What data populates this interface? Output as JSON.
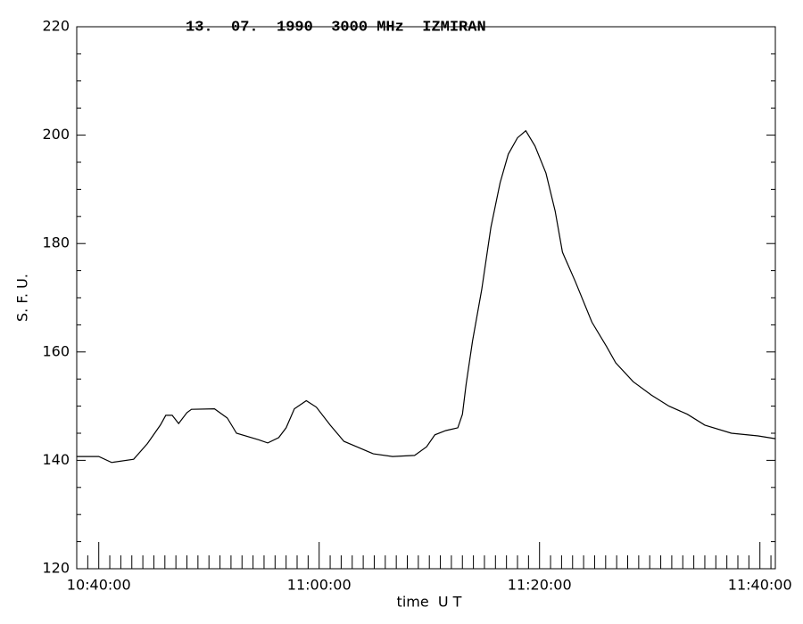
{
  "chart_data": {
    "type": "line",
    "title": "13.  07.  1990  3000 MHz  IZMIRAN",
    "xlabel": "time  U T",
    "ylabel": "S. F. U.",
    "color": "#000000",
    "x": [
      "10:38:00",
      "10:40:00",
      "10:41:10",
      "10:43:10",
      "10:44:25",
      "10:45:35",
      "10:46:05",
      "10:46:40",
      "10:47:15",
      "10:48:00",
      "10:48:25",
      "10:50:30",
      "10:51:40",
      "10:52:30",
      "10:54:30",
      "10:55:20",
      "10:56:20",
      "10:57:00",
      "10:57:45",
      "10:58:50",
      "10:59:45",
      "11:01:00",
      "11:02:15",
      "11:03:25",
      "11:04:55",
      "11:06:40",
      "11:08:40",
      "11:09:45",
      "11:10:30",
      "11:11:30",
      "11:12:35",
      "11:13:00",
      "11:13:20",
      "11:13:55",
      "11:14:45",
      "11:15:35",
      "11:16:25",
      "11:17:10",
      "11:18:00",
      "11:18:45",
      "11:19:35",
      "11:20:35",
      "11:21:25",
      "11:22:05",
      "11:23:15",
      "11:24:45",
      "11:26:05",
      "11:26:55",
      "11:28:30",
      "11:30:10",
      "11:31:45",
      "11:33:25",
      "11:35:00",
      "11:37:25",
      "11:39:50",
      "11:41:24"
    ],
    "values": [
      140.7,
      140.7,
      139.6,
      140.2,
      143.1,
      146.5,
      148.3,
      148.3,
      146.8,
      148.8,
      149.4,
      149.5,
      147.8,
      145,
      143.8,
      143.2,
      144.2,
      146,
      149.5,
      151,
      149.8,
      146.5,
      143.5,
      142.5,
      141.2,
      140.7,
      140.9,
      142.5,
      144.7,
      145.5,
      146,
      148.5,
      154,
      162,
      171.5,
      183,
      191.2,
      196.5,
      199.5,
      200.8,
      198,
      193,
      186,
      178.4,
      173,
      165.5,
      161,
      158,
      154.5,
      152,
      150,
      148.5,
      146.5,
      145,
      144.5,
      144
    ],
    "xlim": [
      "10:38:00",
      "11:41:24"
    ],
    "xticks": [
      "10:40:00",
      "11:00:00",
      "11:20:00",
      "11:40:00"
    ],
    "xminorticks": [
      "10:38:00",
      "10:39:00",
      "10:41:00",
      "10:42:00",
      "10:43:00",
      "10:44:00",
      "10:45:00",
      "10:46:00",
      "10:47:00",
      "10:48:00",
      "10:49:00",
      "10:50:00",
      "10:51:00",
      "10:52:00",
      "10:53:00",
      "10:54:00",
      "10:55:00",
      "10:56:00",
      "10:57:00",
      "10:58:00",
      "10:59:00",
      "11:01:00",
      "11:02:00",
      "11:03:00",
      "11:04:00",
      "11:05:00",
      "11:06:00",
      "11:07:00",
      "11:08:00",
      "11:09:00",
      "11:10:00",
      "11:11:00",
      "11:12:00",
      "11:13:00",
      "11:14:00",
      "11:15:00",
      "11:16:00",
      "11:17:00",
      "11:18:00",
      "11:19:00",
      "11:21:00",
      "11:22:00",
      "11:23:00",
      "11:24:00",
      "11:25:00",
      "11:26:00",
      "11:27:00",
      "11:28:00",
      "11:29:00",
      "11:30:00",
      "11:31:00",
      "11:32:00",
      "11:33:00",
      "11:34:00",
      "11:35:00",
      "11:36:00",
      "11:37:00",
      "11:38:00",
      "11:39:00",
      "11:41:00"
    ],
    "ylim": [
      120,
      220
    ],
    "yticks": [
      120,
      140,
      160,
      180,
      200,
      220
    ],
    "yminorticks": [
      125,
      130,
      135,
      145,
      150,
      155,
      165,
      170,
      175,
      185,
      190,
      195,
      205,
      210,
      215
    ],
    "grid": false
  }
}
